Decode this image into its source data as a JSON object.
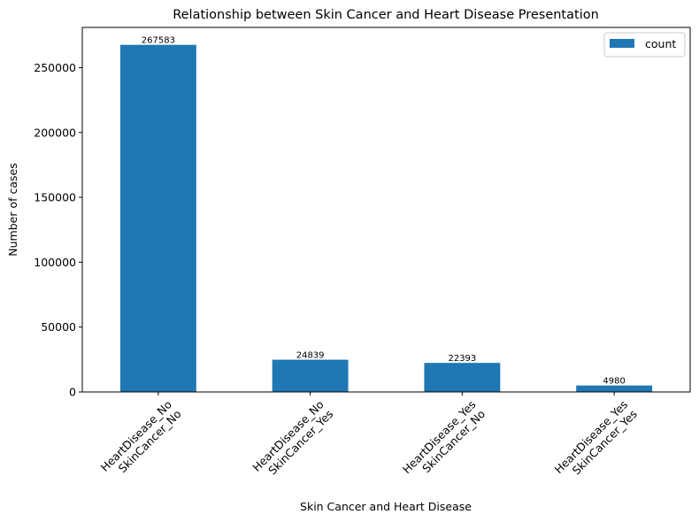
{
  "chart_data": {
    "type": "bar",
    "title": "Relationship between Skin Cancer and Heart Disease Presentation",
    "xlabel": "Skin Cancer and Heart Disease",
    "ylabel": "Number of cases",
    "categories": [
      [
        "HeartDisease_No",
        "SkinCancer_No"
      ],
      [
        "HeartDisease_No",
        "SkinCancer_Yes"
      ],
      [
        "HeartDisease_Yes",
        "SkinCancer_No"
      ],
      [
        "HeartDisease_Yes",
        "SkinCancer_Yes"
      ]
    ],
    "series": [
      {
        "name": "count",
        "values": [
          267583,
          24839,
          22393,
          4980
        ],
        "color": "#1f77b4"
      }
    ],
    "data_labels": [
      "267583",
      "24839",
      "22393",
      "4980"
    ],
    "ylim": [
      0,
      281000
    ],
    "yticks": [
      0,
      50000,
      100000,
      150000,
      200000,
      250000
    ],
    "ytick_labels": [
      "0",
      "50000",
      "100000",
      "150000",
      "200000",
      "250000"
    ],
    "grid": false,
    "legend": {
      "position": "top-right",
      "entries": [
        "count"
      ]
    }
  }
}
